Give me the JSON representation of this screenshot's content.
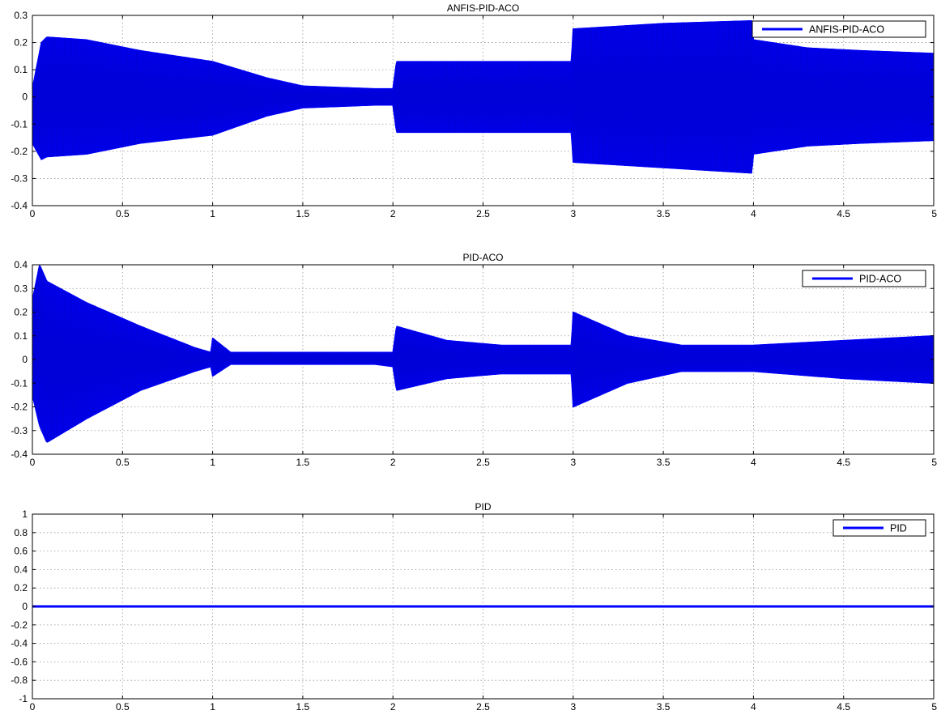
{
  "chart_data": [
    {
      "type": "line",
      "title": "ANFIS-PID-ACO",
      "xlim": [
        0,
        5
      ],
      "ylim": [
        -0.4,
        0.3
      ],
      "xticks": [
        "0",
        "0.5",
        "1",
        "1.5",
        "2",
        "2.5",
        "3",
        "3.5",
        "4",
        "4.5",
        "5"
      ],
      "yticks": [
        "-0.4",
        "-0.3",
        "-0.2",
        "-0.1",
        "0",
        "0.1",
        "0.2",
        "0.3"
      ],
      "grid": true,
      "legend_position": "top-right",
      "series": [
        {
          "name": "ANFIS-PID-ACO",
          "color": "#0000ff",
          "description_of_shape": "high-frequency oscillation; envelope amplitude vs time",
          "envelope_t": [
            0,
            0.05,
            0.08,
            0.3,
            0.6,
            1.0,
            1.3,
            1.5,
            1.9,
            2.0,
            2.02,
            2.1,
            2.5,
            2.99,
            3.0,
            3.5,
            3.99,
            4.0,
            4.3,
            4.6,
            5.0
          ],
          "envelope_upper": [
            0.03,
            0.2,
            0.22,
            0.21,
            0.17,
            0.13,
            0.07,
            0.04,
            0.03,
            0.03,
            0.13,
            0.13,
            0.13,
            0.13,
            0.25,
            0.27,
            0.28,
            0.21,
            0.18,
            0.17,
            0.16
          ],
          "envelope_lower": [
            -0.17,
            -0.23,
            -0.22,
            -0.21,
            -0.17,
            -0.14,
            -0.07,
            -0.04,
            -0.03,
            -0.03,
            -0.13,
            -0.13,
            -0.13,
            -0.13,
            -0.24,
            -0.26,
            -0.28,
            -0.21,
            -0.18,
            -0.17,
            -0.16
          ]
        }
      ]
    },
    {
      "type": "line",
      "title": "PID-ACO",
      "xlim": [
        0,
        5
      ],
      "ylim": [
        -0.4,
        0.4
      ],
      "xticks": [
        "0",
        "0.5",
        "1",
        "1.5",
        "2",
        "2.5",
        "3",
        "3.5",
        "4",
        "4.5",
        "5"
      ],
      "yticks": [
        "-0.4",
        "-0.3",
        "-0.2",
        "-0.1",
        "0",
        "0.1",
        "0.2",
        "0.3",
        "0.4"
      ],
      "grid": true,
      "legend_position": "top-right",
      "series": [
        {
          "name": "PID-ACO",
          "color": "#0000ff",
          "description_of_shape": "high-frequency oscillation; envelope amplitude vs time",
          "envelope_t": [
            0,
            0.04,
            0.08,
            0.3,
            0.6,
            0.9,
            0.99,
            1.0,
            1.1,
            1.5,
            1.9,
            2.0,
            2.02,
            2.3,
            2.6,
            2.99,
            3.0,
            3.3,
            3.6,
            3.99,
            4.0,
            4.5,
            5.0
          ],
          "envelope_upper": [
            0.25,
            0.4,
            0.33,
            0.24,
            0.14,
            0.05,
            0.03,
            0.09,
            0.03,
            0.03,
            0.03,
            0.03,
            0.14,
            0.08,
            0.06,
            0.06,
            0.2,
            0.1,
            0.06,
            0.06,
            0.06,
            0.08,
            0.1
          ],
          "envelope_lower": [
            -0.15,
            -0.28,
            -0.35,
            -0.25,
            -0.13,
            -0.05,
            -0.03,
            -0.07,
            -0.02,
            -0.02,
            -0.02,
            -0.03,
            -0.13,
            -0.08,
            -0.06,
            -0.06,
            -0.2,
            -0.1,
            -0.05,
            -0.05,
            -0.05,
            -0.08,
            -0.1
          ]
        }
      ]
    },
    {
      "type": "line",
      "title": "PID",
      "xlim": [
        0,
        5
      ],
      "ylim": [
        -1,
        1
      ],
      "xticks": [
        "0",
        "0.5",
        "1",
        "1.5",
        "2",
        "2.5",
        "3",
        "3.5",
        "4",
        "4.5",
        "5"
      ],
      "yticks": [
        "-1",
        "-0.8",
        "-0.6",
        "-0.4",
        "-0.2",
        "0",
        "0.2",
        "0.4",
        "0.6",
        "0.8",
        "1"
      ],
      "grid": true,
      "legend_position": "top-right",
      "series": [
        {
          "name": "PID",
          "color": "#0000ff",
          "x": [
            0,
            5
          ],
          "y": [
            0,
            0
          ]
        }
      ]
    }
  ]
}
